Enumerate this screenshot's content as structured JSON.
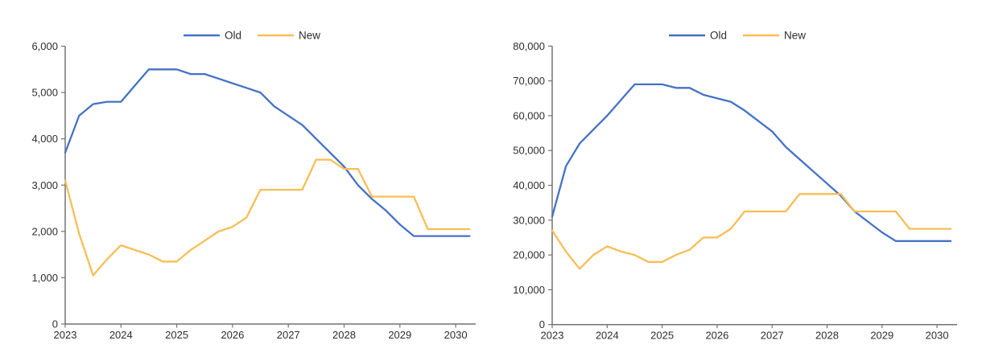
{
  "page": {
    "background": "#ffffff"
  },
  "styles": {
    "axis_color": "#737373",
    "text_color": "#2e2e2e",
    "old_series_color": "#4472C4",
    "new_series_color": "#F7BE56"
  },
  "chart_data": [
    {
      "type": "line",
      "title": "",
      "legend_position": "top",
      "grid": false,
      "xlim": [
        2023,
        2030.35
      ],
      "ylim": [
        0,
        6000
      ],
      "x_ticks": [
        "2023",
        "2024",
        "2025",
        "2026",
        "2027",
        "2028",
        "2029",
        "2030"
      ],
      "x_tick_values": [
        2023,
        2024,
        2025,
        2026,
        2027,
        2028,
        2029,
        2030
      ],
      "y_ticks": [
        "0",
        "1,000",
        "2,000",
        "3,000",
        "4,000",
        "5,000",
        "6,000"
      ],
      "y_tick_values": [
        0,
        1000,
        2000,
        3000,
        4000,
        5000,
        6000
      ],
      "x": [
        2023,
        2023.25,
        2023.5,
        2023.75,
        2024,
        2024.25,
        2024.5,
        2024.75,
        2025,
        2025.25,
        2025.5,
        2025.75,
        2026,
        2026.25,
        2026.5,
        2026.75,
        2027,
        2027.25,
        2027.5,
        2027.75,
        2028,
        2028.25,
        2028.5,
        2028.75,
        2029,
        2029.25,
        2029.5,
        2029.75,
        2030,
        2030.25
      ],
      "series": [
        {
          "name": "Old",
          "color": "#4472C4",
          "values": [
            3700,
            4500,
            4750,
            4800,
            4800,
            5150,
            5500,
            5500,
            5500,
            5400,
            5400,
            5300,
            5200,
            5100,
            5000,
            4700,
            4500,
            4300,
            4000,
            3700,
            3400,
            3000,
            2700,
            2450,
            2150,
            1900,
            1900,
            1900,
            1900,
            1900
          ]
        },
        {
          "name": "New",
          "color": "#F7BE56",
          "values": [
            3100,
            1950,
            1050,
            1400,
            1700,
            1600,
            1500,
            1350,
            1350,
            1600,
            1800,
            2000,
            2100,
            2300,
            2900,
            2900,
            2900,
            2900,
            3550,
            3550,
            3350,
            3350,
            2750,
            2750,
            2750,
            2750,
            2050,
            2050,
            2050,
            2050
          ]
        }
      ]
    },
    {
      "type": "line",
      "title": "",
      "legend_position": "top",
      "grid": false,
      "xlim": [
        2023,
        2030.35
      ],
      "ylim": [
        0,
        80000
      ],
      "x_ticks": [
        "2023",
        "2024",
        "2025",
        "2026",
        "2027",
        "2028",
        "2029",
        "2030"
      ],
      "x_tick_values": [
        2023,
        2024,
        2025,
        2026,
        2027,
        2028,
        2029,
        2030
      ],
      "y_ticks": [
        "0",
        "10,000",
        "20,000",
        "30,000",
        "40,000",
        "50,000",
        "60,000",
        "70,000",
        "80,000"
      ],
      "y_tick_values": [
        0,
        10000,
        20000,
        30000,
        40000,
        50000,
        60000,
        70000,
        80000
      ],
      "x": [
        2023,
        2023.25,
        2023.5,
        2023.75,
        2024,
        2024.25,
        2024.5,
        2024.75,
        2025,
        2025.25,
        2025.5,
        2025.75,
        2026,
        2026.25,
        2026.5,
        2026.75,
        2027,
        2027.25,
        2027.5,
        2027.75,
        2028,
        2028.25,
        2028.5,
        2028.75,
        2029,
        2029.25,
        2029.5,
        2029.75,
        2030,
        2030.25
      ],
      "series": [
        {
          "name": "Old",
          "color": "#4472C4",
          "values": [
            31000,
            45500,
            52000,
            56000,
            60000,
            64500,
            69000,
            69000,
            69000,
            68000,
            68000,
            66000,
            65000,
            64000,
            61500,
            58500,
            55500,
            51000,
            47500,
            44000,
            40500,
            37000,
            32500,
            29500,
            26500,
            24000,
            24000,
            24000,
            24000,
            24000
          ]
        },
        {
          "name": "New",
          "color": "#F7BE56",
          "values": [
            27000,
            21000,
            16000,
            20000,
            22500,
            21000,
            20000,
            18000,
            18000,
            20000,
            21500,
            25000,
            25000,
            27500,
            32500,
            32500,
            32500,
            32500,
            37500,
            37500,
            37500,
            37500,
            32500,
            32500,
            32500,
            32500,
            27500,
            27500,
            27500,
            27500
          ]
        }
      ]
    }
  ]
}
